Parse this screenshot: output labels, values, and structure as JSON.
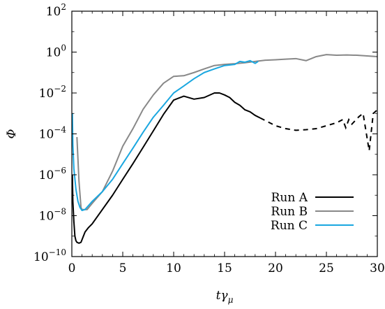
{
  "chart_data": {
    "type": "line",
    "xlabel": "tγμ",
    "ylabel": "Φ",
    "y_scale": "log",
    "xlim": [
      0,
      30
    ],
    "ylim": [
      1e-10,
      100
    ],
    "x_ticks": [
      0,
      5,
      10,
      15,
      20,
      25,
      30
    ],
    "x_tick_labels": [
      "0",
      "5",
      "10",
      "15",
      "20",
      "25",
      "30"
    ],
    "y_ticks": [
      1e-10,
      1e-08,
      1e-06,
      0.0001,
      0.01,
      1,
      100
    ],
    "y_tick_labels": [
      {
        "base": "10",
        "exp": "−10"
      },
      {
        "base": "10",
        "exp": "−8"
      },
      {
        "base": "10",
        "exp": "−6"
      },
      {
        "base": "10",
        "exp": "−4"
      },
      {
        "base": "10",
        "exp": "−2"
      },
      {
        "base": "10",
        "exp": "0"
      },
      {
        "base": "10",
        "exp": "2"
      }
    ],
    "grid": false,
    "legend_position": "bottom-right",
    "series": [
      {
        "name": "Run A",
        "color": "#000000",
        "solid": [
          [
            0.05,
            1e-06
          ],
          [
            0.1,
            5e-08
          ],
          [
            0.2,
            5e-09
          ],
          [
            0.3,
            1e-09
          ],
          [
            0.4,
            6e-10
          ],
          [
            0.5,
            5e-10
          ],
          [
            0.7,
            4.5e-10
          ],
          [
            0.9,
            5e-10
          ],
          [
            1.1,
            9e-10
          ],
          [
            1.3,
            1.6e-09
          ],
          [
            1.6,
            2.5e-09
          ],
          [
            2,
            4e-09
          ],
          [
            3,
            2e-08
          ],
          [
            4,
            1e-07
          ],
          [
            5,
            6e-07
          ],
          [
            6,
            3.5e-06
          ],
          [
            7,
            2.2e-05
          ],
          [
            8,
            0.00014
          ],
          [
            9,
            0.0009
          ],
          [
            10,
            0.0045
          ],
          [
            11,
            0.007
          ],
          [
            12,
            0.005
          ],
          [
            13,
            0.006
          ],
          [
            14,
            0.01
          ],
          [
            14.5,
            0.01
          ],
          [
            15,
            0.008
          ],
          [
            15.5,
            0.006
          ],
          [
            16,
            0.0035
          ],
          [
            16.5,
            0.0025
          ],
          [
            17,
            0.0015
          ],
          [
            17.5,
            0.0012
          ],
          [
            18,
            0.0008
          ],
          [
            18.5,
            0.0006
          ]
        ],
        "dashed": [
          [
            18.5,
            0.0006
          ],
          [
            20,
            0.00025
          ],
          [
            21,
            0.00018
          ],
          [
            22,
            0.00015
          ],
          [
            23,
            0.00016
          ],
          [
            24,
            0.00018
          ],
          [
            25,
            0.00025
          ],
          [
            26,
            0.00035
          ],
          [
            26.6,
            0.0005
          ],
          [
            26.9,
            0.0002
          ],
          [
            27.2,
            0.0005
          ],
          [
            27.5,
            0.0003
          ],
          [
            28.2,
            0.0007
          ],
          [
            28.6,
            0.001
          ],
          [
            29.2,
            1.5e-05
          ],
          [
            29.6,
            0.001
          ],
          [
            30,
            0.0015
          ]
        ]
      },
      {
        "name": "Run B",
        "color": "#888888",
        "solid": [
          [
            0.5,
            7e-05
          ],
          [
            0.7,
            5e-07
          ],
          [
            0.9,
            2.5e-08
          ],
          [
            1,
            2e-08
          ],
          [
            1.5,
            2e-08
          ],
          [
            2,
            4e-08
          ],
          [
            3,
            1.5e-07
          ],
          [
            4,
            1.5e-06
          ],
          [
            5,
            2.5e-05
          ],
          [
            6,
            0.00018
          ],
          [
            7,
            0.0016
          ],
          [
            8,
            0.008
          ],
          [
            9,
            0.03
          ],
          [
            10,
            0.065
          ],
          [
            11,
            0.07
          ],
          [
            12,
            0.1
          ],
          [
            13,
            0.15
          ],
          [
            14,
            0.22
          ],
          [
            15,
            0.25
          ],
          [
            16,
            0.27
          ],
          [
            17,
            0.3
          ],
          [
            18,
            0.35
          ],
          [
            19,
            0.4
          ],
          [
            20,
            0.42
          ],
          [
            21,
            0.45
          ],
          [
            22,
            0.48
          ],
          [
            23,
            0.38
          ],
          [
            24,
            0.6
          ],
          [
            25,
            0.75
          ],
          [
            26,
            0.7
          ],
          [
            27,
            0.72
          ],
          [
            28,
            0.7
          ],
          [
            29,
            0.65
          ],
          [
            30,
            0.6
          ]
        ],
        "dashed": []
      },
      {
        "name": "Run C",
        "color": "#1aa7e0",
        "solid": [
          [
            0.05,
            0.001
          ],
          [
            0.1,
            3e-05
          ],
          [
            0.2,
            2e-06
          ],
          [
            0.4,
            2e-07
          ],
          [
            0.6,
            5e-08
          ],
          [
            0.8,
            2.5e-08
          ],
          [
            1,
            1.8e-08
          ],
          [
            1.3,
            2e-08
          ],
          [
            2,
            5e-08
          ],
          [
            3,
            1.5e-07
          ],
          [
            4,
            6e-07
          ],
          [
            5,
            3.5e-06
          ],
          [
            6,
            2e-05
          ],
          [
            7,
            0.00012
          ],
          [
            8,
            0.00065
          ],
          [
            9,
            0.0025
          ],
          [
            10,
            0.01
          ],
          [
            11,
            0.022
          ],
          [
            12,
            0.05
          ],
          [
            13,
            0.1
          ],
          [
            14,
            0.15
          ],
          [
            15,
            0.22
          ],
          [
            16,
            0.25
          ],
          [
            16.5,
            0.35
          ],
          [
            17,
            0.32
          ],
          [
            17.5,
            0.38
          ],
          [
            18,
            0.28
          ],
          [
            18.3,
            0.35
          ]
        ],
        "dashed": []
      }
    ]
  }
}
